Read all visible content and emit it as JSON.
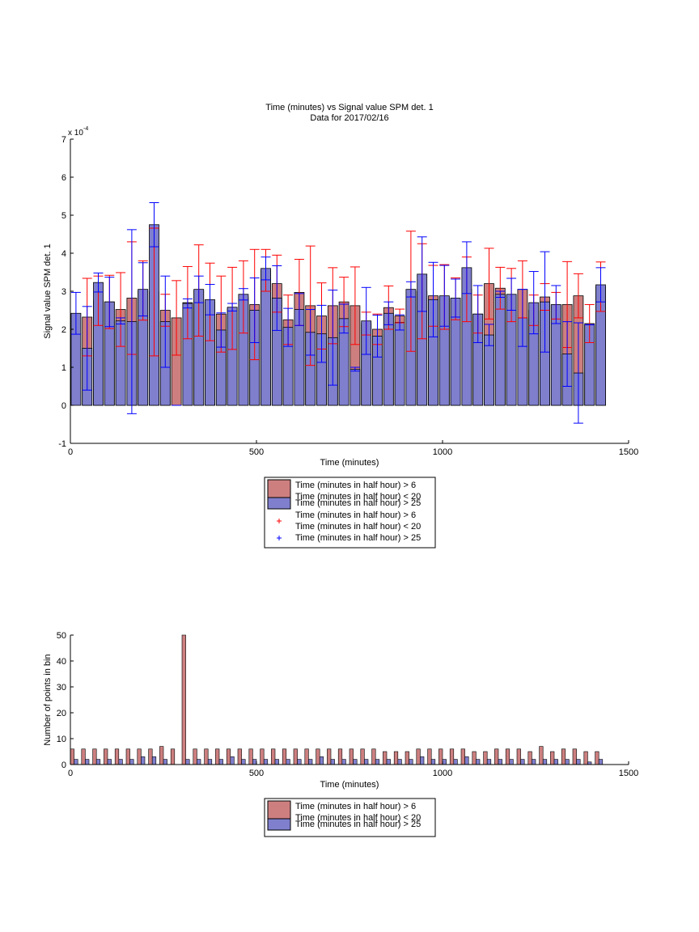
{
  "figure": {
    "date_title": "Data for 2017/02/16"
  },
  "colors": {
    "red_bar": "#cd7f7f",
    "blue_bar": "#7f7fcd",
    "red_err": "#ff0000",
    "blue_err": "#0000ff",
    "axis": "#000000"
  },
  "chart_data": [
    {
      "type": "bar",
      "title": "Time (minutes) vs Signal value SPM det. 1",
      "subtitle": "Data for 2017/02/16",
      "xlabel": "Time (minutes)",
      "ylabel": "Signal value SPM det. 1",
      "y_exponent_label": "x 10",
      "y_exponent": "-4",
      "xlim": [
        0,
        1500
      ],
      "ylim": [
        -1,
        7
      ],
      "x_ticks": [
        0,
        500,
        1000,
        1500
      ],
      "y_ticks": [
        -1,
        0,
        1,
        2,
        3,
        4,
        5,
        6,
        7
      ],
      "y_units_scale": "1e-4",
      "grid": false,
      "legend_position": "below plot",
      "legend": [
        "Time (minutes in half hour) > 6\nTime (minutes in half hour) < 20",
        "Time (minutes in half hour) > 25",
        "Time (minutes in half hour) > 6\nTime (minutes in half hour) < 20",
        "Time (minutes in half hour) > 25"
      ],
      "series": [
        {
          "name": "Time (minutes in half hour) > 6 / Time (minutes in half hour) < 20",
          "x": [
            45,
            75,
            105,
            135,
            165,
            195,
            225,
            255,
            285,
            315,
            345,
            375,
            405,
            435,
            465,
            495,
            525,
            555,
            585,
            615,
            645,
            675,
            705,
            735,
            765,
            795,
            825,
            855,
            885,
            915,
            945,
            975,
            1005,
            1035,
            1065,
            1095,
            1125,
            1155,
            1185,
            1215,
            1245,
            1275,
            1305,
            1335,
            1365,
            1395,
            1425
          ],
          "values": [
            2.32,
            2.75,
            2.72,
            2.52,
            2.82,
            3.02,
            2.98,
            2.5,
            2.3,
            2.7,
            3.02,
            2.72,
            2.4,
            2.55,
            2.85,
            2.65,
            3.55,
            3.2,
            2.25,
            2.97,
            2.62,
            2.35,
            2.62,
            2.72,
            2.62,
            2.15,
            2.0,
            2.57,
            2.35,
            3.0,
            3.0,
            2.88,
            2.85,
            2.8,
            3.05,
            2.4,
            3.2,
            3.08,
            2.9,
            3.05,
            2.5,
            2.85,
            2.62,
            2.65,
            2.88,
            2.15,
            3.12
          ],
          "error": [
            1.02,
            0.65,
            0.7,
            0.97,
            1.48,
            0.78,
            1.68,
            0.42,
            0.98,
            0.95,
            1.2,
            1.02,
            1.0,
            1.08,
            0.95,
            1.45,
            0.55,
            0.75,
            0.65,
            0.87,
            1.57,
            0.87,
            1.0,
            0.65,
            1.02,
            0.3,
            0.4,
            0.57,
            0.18,
            1.58,
            1.25,
            0.8,
            0.85,
            0.55,
            0.85,
            0.5,
            0.93,
            0.55,
            0.7,
            0.75,
            0.4,
            0.35,
            0.35,
            1.13,
            0.58,
            0.5,
            0.65
          ]
        },
        {
          "name": "Time (minutes in half hour) > 25",
          "x": [
            15,
            45,
            75,
            105,
            135,
            165,
            195,
            225,
            255,
            285,
            315,
            345,
            375,
            405,
            435,
            465,
            495,
            525,
            555,
            585,
            615,
            645,
            675,
            705,
            735,
            765,
            795,
            825,
            855,
            885,
            915,
            945,
            975,
            1005,
            1035,
            1065,
            1095,
            1125,
            1155,
            1185,
            1215,
            1245,
            1275,
            1305,
            1335,
            1365,
            1395,
            1425
          ],
          "values": [
            2.42,
            1.5,
            3.23,
            2.72,
            2.22,
            2.2,
            3.05,
            4.75,
            2.2,
            0.0,
            2.68,
            3.05,
            2.78,
            1.98,
            2.58,
            2.92,
            2.5,
            3.6,
            2.82,
            2.05,
            2.52,
            1.92,
            1.88,
            1.78,
            2.28,
            0.95,
            2.22,
            1.82,
            2.42,
            2.18,
            3.05,
            3.45,
            2.78,
            2.88,
            2.82,
            3.62,
            2.4,
            1.85,
            2.92,
            2.92,
            2.3,
            2.7,
            2.72,
            2.65,
            1.35,
            0.85,
            2.12,
            3.17
          ],
          "error": [
            0.55,
            1.1,
            0.25,
            0.65,
            0.08,
            2.42,
            0.7,
            0.58,
            1.2,
            0.0,
            0.12,
            0.35,
            0.4,
            0.45,
            0.1,
            0.15,
            0.85,
            0.3,
            0.85,
            0.5,
            0.42,
            0.6,
            0.75,
            1.25,
            0.38,
            0.05,
            0.88,
            0.55,
            0.3,
            0.2,
            0.2,
            0.98,
            0.98,
            0.8,
            0.5,
            0.68,
            0.75,
            0.28,
            0.08,
            0.42,
            0.75,
            0.82,
            1.32,
            0.5,
            0.85,
            1.32,
            0.0,
            0.45
          ]
        }
      ]
    },
    {
      "type": "bar",
      "xlabel": "Time (minutes)",
      "ylabel": "Number of points in bin",
      "xlim": [
        0,
        1500
      ],
      "ylim": [
        0,
        50
      ],
      "x_ticks": [
        0,
        500,
        1000,
        1500
      ],
      "y_ticks": [
        0,
        10,
        20,
        30,
        40,
        50
      ],
      "grid": false,
      "legend_position": "below plot",
      "legend": [
        "Time (minutes in half hour) > 6\nTime (minutes in half hour) < 20",
        "Time (minutes in half hour) > 25"
      ],
      "series": [
        {
          "name": "Time (minutes in half hour) > 6 / Time (minutes in half hour) < 20",
          "x": [
            5,
            35,
            65,
            95,
            125,
            155,
            185,
            215,
            245,
            275,
            305,
            335,
            365,
            395,
            425,
            455,
            485,
            515,
            545,
            575,
            605,
            635,
            665,
            695,
            725,
            755,
            785,
            815,
            845,
            875,
            905,
            935,
            965,
            995,
            1025,
            1055,
            1085,
            1115,
            1145,
            1175,
            1205,
            1235,
            1265,
            1295,
            1325,
            1355,
            1385,
            1415
          ],
          "values": [
            6,
            6,
            6,
            6,
            6,
            6,
            6,
            6,
            7,
            6,
            50,
            6,
            6,
            6,
            6,
            6,
            6,
            6,
            6,
            6,
            6,
            6,
            6,
            6,
            6,
            6,
            6,
            6,
            5,
            5,
            5,
            6,
            6,
            6,
            6,
            6,
            5,
            5,
            6,
            6,
            6,
            5,
            7,
            5,
            6,
            6,
            5,
            5
          ]
        },
        {
          "name": "Time (minutes in half hour) > 25",
          "x": [
            15,
            45,
            75,
            105,
            135,
            165,
            195,
            225,
            255,
            285,
            315,
            345,
            375,
            405,
            435,
            465,
            495,
            525,
            555,
            585,
            615,
            645,
            675,
            705,
            735,
            765,
            795,
            825,
            855,
            885,
            915,
            945,
            975,
            1005,
            1035,
            1065,
            1095,
            1125,
            1155,
            1185,
            1215,
            1245,
            1275,
            1305,
            1335,
            1365,
            1395,
            1425
          ],
          "values": [
            2,
            2,
            2,
            2,
            2,
            2,
            3,
            3,
            2,
            0,
            2,
            2,
            2,
            2,
            3,
            2,
            2,
            2,
            2,
            2,
            2,
            2,
            3,
            2,
            2,
            2,
            2,
            2,
            2,
            2,
            2,
            3,
            2,
            2,
            2,
            3,
            2,
            2,
            2,
            2,
            2,
            2,
            2,
            2,
            2,
            2,
            1,
            2
          ]
        }
      ]
    }
  ]
}
